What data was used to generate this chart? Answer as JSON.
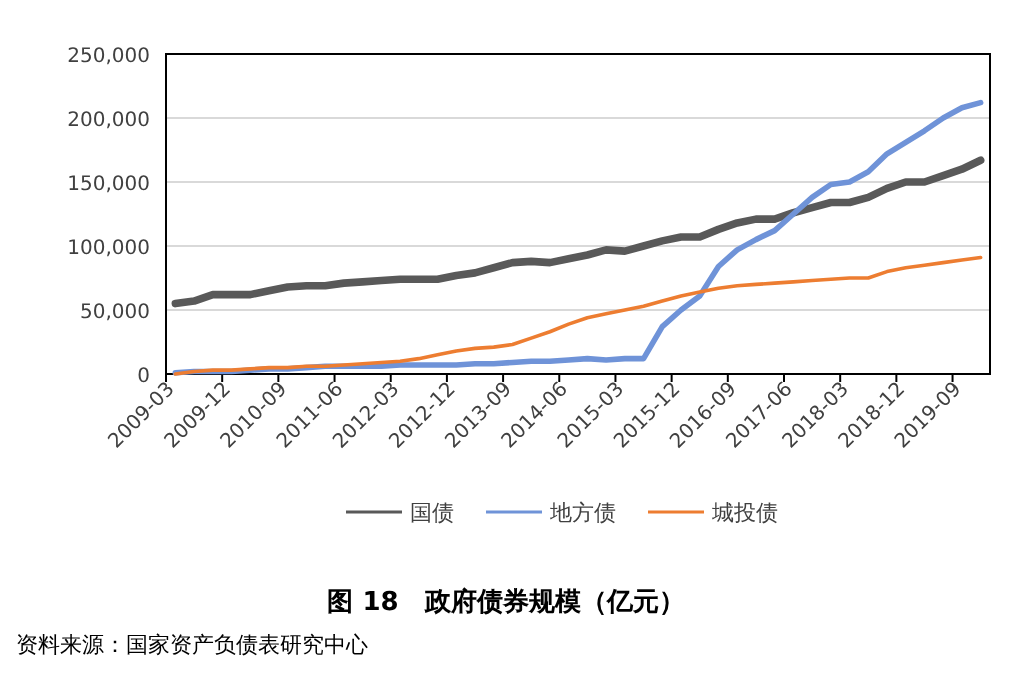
{
  "chart_data": {
    "type": "line",
    "title": "图 18　政府债券规模（亿元）",
    "annotations": [
      "资料来源：国家资产负债表研究中心"
    ],
    "categories": [
      "2009-03",
      null,
      null,
      "2009-12",
      null,
      null,
      "2010-09",
      null,
      null,
      "2011-06",
      null,
      null,
      "2012-03",
      null,
      null,
      "2012-12",
      null,
      null,
      "2013-09",
      null,
      null,
      "2014-06",
      null,
      null,
      "2015-03",
      null,
      null,
      "2015-12",
      null,
      null,
      "2016-09",
      null,
      null,
      "2017-06",
      null,
      null,
      "2018-03",
      null,
      null,
      "2018-12",
      null,
      null,
      "2019-09",
      null
    ],
    "series": [
      {
        "name": "国债",
        "color": "#595959",
        "values": [
          55000,
          57000,
          62000,
          62000,
          62000,
          65000,
          68000,
          69000,
          69000,
          71000,
          72000,
          73000,
          74000,
          74000,
          74000,
          77000,
          79000,
          83000,
          87000,
          88000,
          87000,
          90000,
          93000,
          97000,
          96000,
          100000,
          104000,
          107000,
          107000,
          113000,
          118000,
          121000,
          121000,
          126000,
          130000,
          134000,
          134000,
          138000,
          145000,
          150000,
          150000,
          155000,
          160000,
          167000
        ]
      },
      {
        "name": "地方债",
        "color": "#6f93d8",
        "values": [
          1000,
          2000,
          2000,
          2000,
          3000,
          4000,
          4000,
          5000,
          6000,
          6000,
          6000,
          6000,
          7000,
          7000,
          7000,
          7000,
          8000,
          8000,
          9000,
          10000,
          10000,
          11000,
          12000,
          11000,
          12000,
          12000,
          37000,
          50000,
          61000,
          84000,
          97000,
          105000,
          112000,
          125000,
          138000,
          148000,
          150000,
          158000,
          172000,
          181000,
          190000,
          200000,
          208000,
          212000
        ]
      },
      {
        "name": "城投债",
        "color": "#ed7d31",
        "values": [
          0,
          2000,
          3000,
          3000,
          4000,
          5000,
          5000,
          6000,
          6000,
          7000,
          8000,
          9000,
          10000,
          12000,
          15000,
          18000,
          20000,
          21000,
          23000,
          28000,
          33000,
          39000,
          44000,
          47000,
          50000,
          53000,
          57000,
          61000,
          64000,
          67000,
          69000,
          70000,
          71000,
          72000,
          73000,
          74000,
          75000,
          75000,
          80000,
          83000,
          85000,
          87000,
          89000,
          91000
        ]
      }
    ],
    "ylim": [
      0,
      250000
    ],
    "yticks": [
      0,
      {
        "value": 50000,
        "label": "50,000"
      },
      {
        "value": 100000,
        "label": "100,000"
      },
      {
        "value": 150000,
        "label": "150,000"
      },
      {
        "value": 200000,
        "label": "200,000"
      },
      {
        "value": 250000,
        "label": "250,000"
      }
    ],
    "grid": "y",
    "legend": "bottom"
  }
}
